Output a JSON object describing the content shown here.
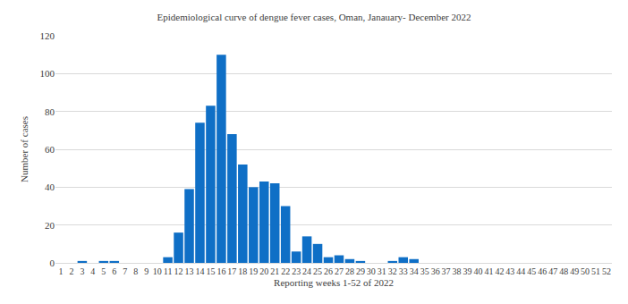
{
  "chart_data": {
    "type": "bar",
    "title": "Epidemiological curve of dengue fever cases, Oman, Janauary- December 2022",
    "x_label": "Reporting weeks 1-52 of 2022",
    "y_label": "Number of cases",
    "categories": [
      "1",
      "2",
      "3",
      "4",
      "5",
      "6",
      "7",
      "8",
      "9",
      "10",
      "11",
      "12",
      "13",
      "14",
      "15",
      "16",
      "17",
      "18",
      "19",
      "20",
      "21",
      "22",
      "23",
      "24",
      "25",
      "26",
      "27",
      "28",
      "29",
      "30",
      "31",
      "32",
      "33",
      "34",
      "35",
      "36",
      "37",
      "38",
      "39",
      "40",
      "41",
      "42",
      "43",
      "44",
      "45",
      "46",
      "47",
      "48",
      "49",
      "50",
      "51",
      "52"
    ],
    "values": [
      0,
      0,
      1,
      0,
      1,
      1,
      0,
      0,
      0,
      0,
      3,
      16,
      39,
      74,
      83,
      110,
      68,
      52,
      40,
      43,
      42,
      30,
      6,
      14,
      10,
      3,
      4,
      2,
      1,
      0,
      0,
      1,
      3,
      2,
      0,
      0,
      0,
      0,
      0,
      0,
      0,
      0,
      0,
      0,
      0,
      0,
      0,
      0,
      0,
      0,
      0,
      0
    ],
    "color": "#0f6fc6",
    "ylim": [
      0,
      120
    ],
    "yticks": [
      0,
      20,
      40,
      60,
      80,
      100,
      120
    ],
    "grid": true
  }
}
